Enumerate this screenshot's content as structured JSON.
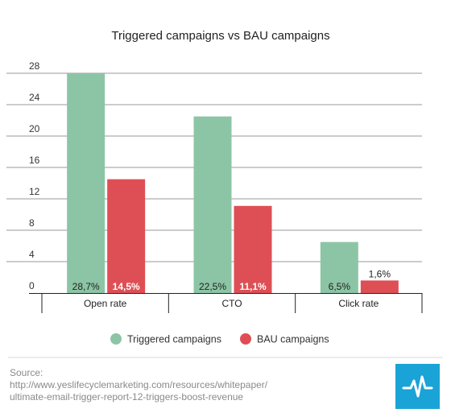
{
  "chart_data": {
    "type": "bar",
    "title": "Triggered campaigns vs BAU campaigns",
    "categories": [
      "Open rate",
      "CTO",
      "Click rate"
    ],
    "series": [
      {
        "name": "Triggered campaigns",
        "values": [
          28.7,
          22.5,
          6.5
        ],
        "labels": [
          "28,7%",
          "22,5%",
          "6,5%"
        ],
        "color": "#8cc5a5"
      },
      {
        "name": "BAU campaigns",
        "values": [
          14.5,
          11.1,
          1.6
        ],
        "labels": [
          "14,5%",
          "11,1%",
          "1,6%"
        ],
        "color": "#de4f55"
      }
    ],
    "ylim": [
      0,
      28
    ],
    "yticks": [
      0,
      4,
      8,
      12,
      16,
      20,
      24,
      28
    ],
    "grid": true,
    "legend": "bottom",
    "xlabel": "",
    "ylabel": ""
  },
  "source": {
    "label": "Source:",
    "line1": "http://www.yeslifecyclemarketing.com/resources/whitepaper/",
    "line2": "ultimate-email-trigger-report-12-triggers-boost-revenue"
  },
  "logo": {
    "icon": "pulse-line-icon",
    "color": "#1aa3d6"
  }
}
